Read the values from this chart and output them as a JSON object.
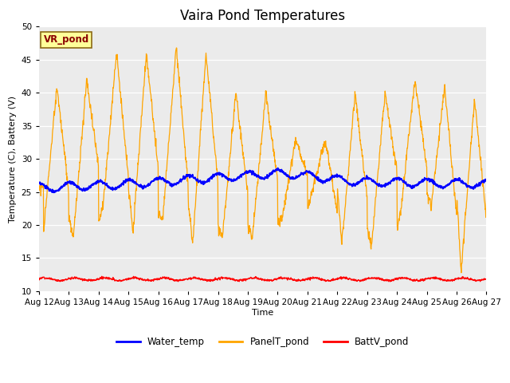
{
  "title": "Vaira Pond Temperatures",
  "xlabel": "Time",
  "ylabel": "Temperature (C), Battery (V)",
  "ylim": [
    10,
    50
  ],
  "yticks": [
    10,
    15,
    20,
    25,
    30,
    35,
    40,
    45,
    50
  ],
  "x_tick_labels": [
    "Aug 12",
    "Aug 13",
    "Aug 14",
    "Aug 15",
    "Aug 16",
    "Aug 17",
    "Aug 18",
    "Aug 19",
    "Aug 20",
    "Aug 21",
    "Aug 22",
    "Aug 23",
    "Aug 24",
    "Aug 25",
    "Aug 26",
    "Aug 27"
  ],
  "water_temp_color": "blue",
  "panel_color": "orange",
  "batt_color": "red",
  "bg_color": "#e8e8e8",
  "plot_bg_color": "#ebebeb",
  "annotation_text": "VR_pond",
  "annotation_bg": "#ffff99",
  "annotation_edge": "#8b6914",
  "annotation_text_color": "#8b0000",
  "title_fontsize": 12,
  "tick_fontsize": 7.5,
  "ylabel_fontsize": 8,
  "xlabel_fontsize": 8
}
